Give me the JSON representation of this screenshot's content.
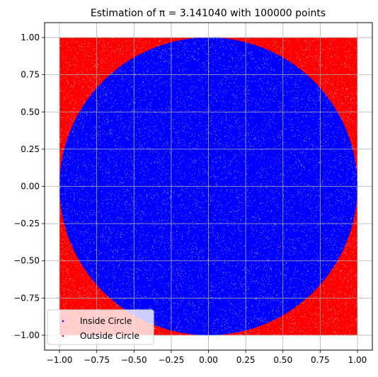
{
  "chart_data": {
    "type": "scatter",
    "title": "Estimation of π = 3.141040 with 100000 points",
    "xlabel": "",
    "ylabel": "",
    "xlim": [
      -1.1,
      1.1
    ],
    "ylim": [
      -1.1,
      1.1
    ],
    "xticks": [
      "−1.00",
      "−0.75",
      "−0.50",
      "−0.25",
      "0.00",
      "0.25",
      "0.50",
      "0.75",
      "1.00"
    ],
    "yticks": [
      "−1.00",
      "−0.75",
      "−0.50",
      "−0.25",
      "0.00",
      "0.25",
      "0.50",
      "0.75",
      "1.00"
    ],
    "grid": true,
    "legend_position": "bottom-left",
    "point_count": 100000,
    "pi_estimate": 3.14104,
    "x_range": [
      -1,
      1
    ],
    "y_range": [
      -1,
      1
    ],
    "series": [
      {
        "name": "Inside Circle",
        "color": "#0000ff",
        "region": "x^2 + y^2 <= 1"
      },
      {
        "name": "Outside Circle",
        "color": "#ff0000",
        "region": "x^2 + y^2 > 1"
      }
    ]
  }
}
